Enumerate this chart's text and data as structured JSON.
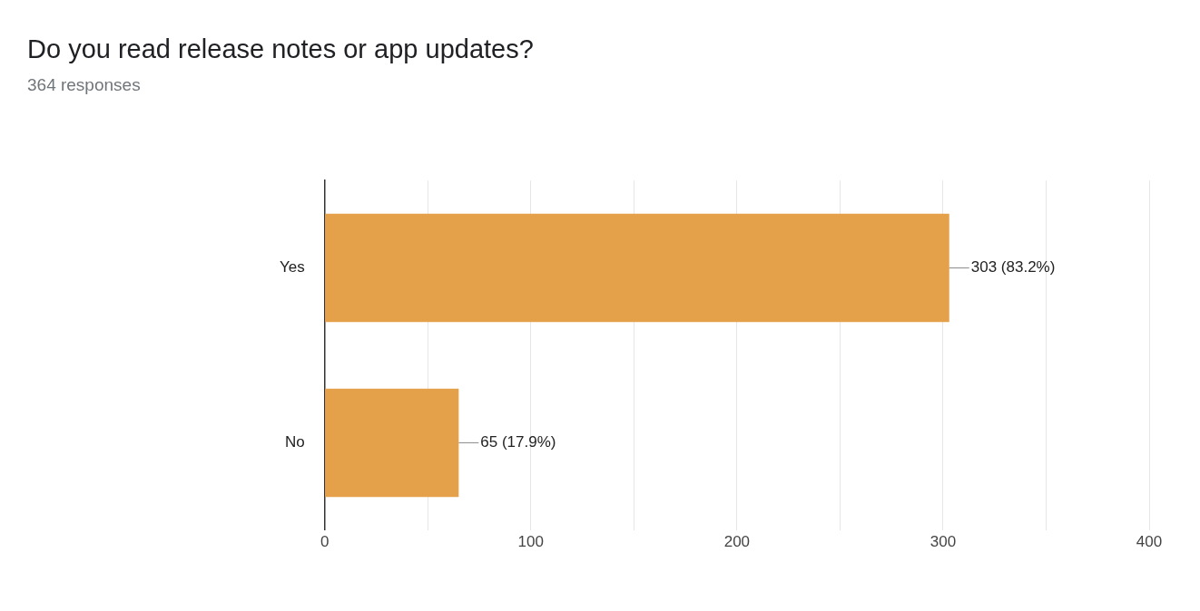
{
  "chart_data": {
    "type": "bar",
    "orientation": "horizontal",
    "title": "Do you read release notes or app updates?",
    "subtitle": "364 responses",
    "categories": [
      "Yes",
      "No"
    ],
    "values": [
      303,
      65
    ],
    "value_labels": [
      "303 (83.2%)",
      "65 (17.9%)"
    ],
    "color": "#e5a04a",
    "xlim": [
      0,
      400
    ],
    "xticks": [
      0,
      {
        "value": 50,
        "label": null
      },
      100,
      {
        "value": 150,
        "label": null
      },
      200,
      {
        "value": 250,
        "label": null
      },
      300,
      {
        "value": 350,
        "label": null
      },
      400
    ],
    "grid": "x",
    "legend": false
  }
}
